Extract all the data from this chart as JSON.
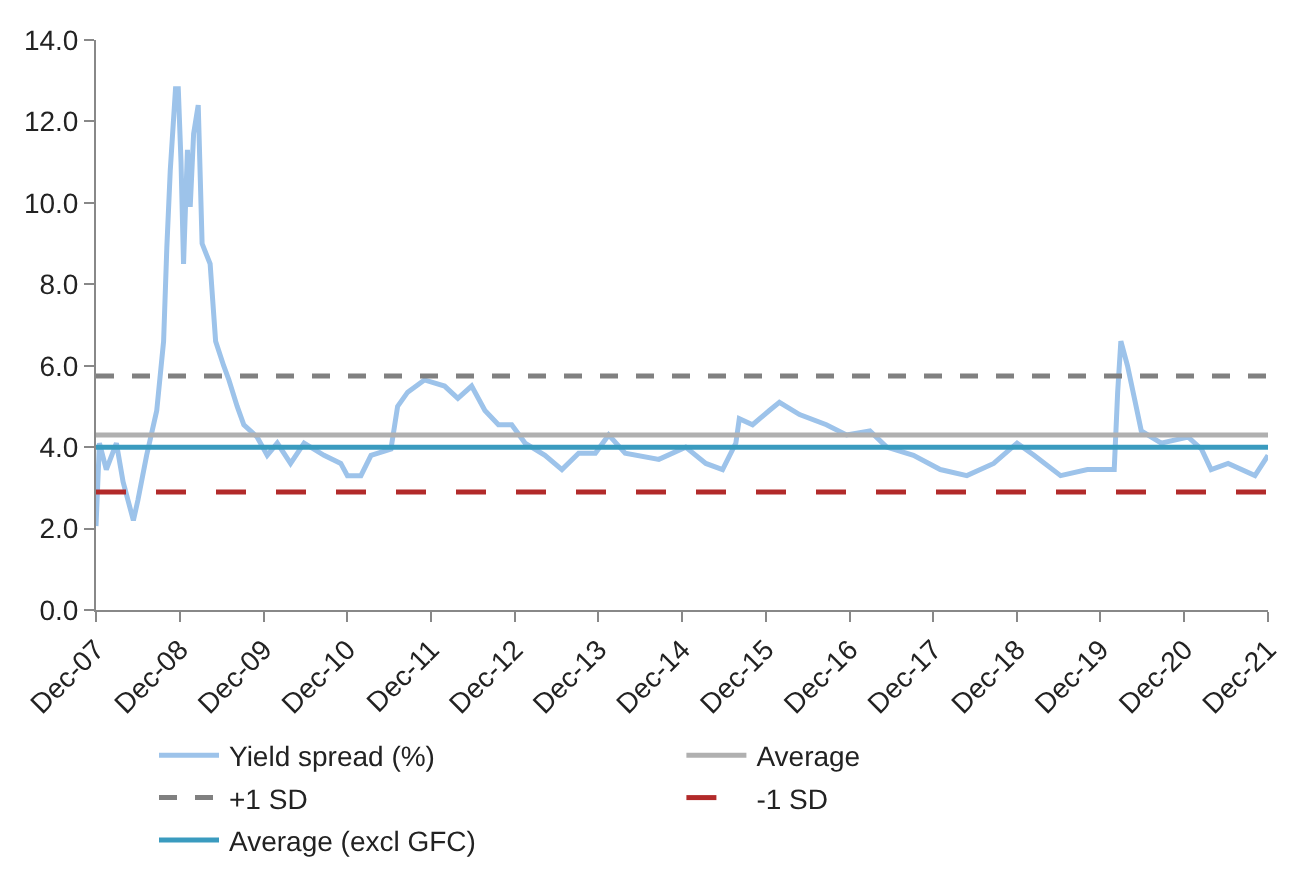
{
  "chart_data": {
    "type": "line",
    "x": [
      "2007-12-01",
      "2007-12-16",
      "2008-01-15",
      "2008-02-28",
      "2008-03-28",
      "2008-05-12",
      "2008-06-01",
      "2008-07-09",
      "2008-08-22",
      "2008-09-21",
      "2008-10-05",
      "2008-10-20",
      "2008-11-12",
      "2008-11-24",
      "2008-12-06",
      "2008-12-17",
      "2009-01-03",
      "2009-01-15",
      "2009-01-30",
      "2009-02-19",
      "2009-03-08",
      "2009-04-12",
      "2009-05-06",
      "2009-06-10",
      "2009-07-03",
      "2009-08-08",
      "2009-09-06",
      "2009-11-03",
      "2009-12-17",
      "2010-01-30",
      "2010-03-29",
      "2010-05-27",
      "2010-08-22",
      "2010-11-03",
      "2010-12-02",
      "2011-01-30",
      "2011-03-15",
      "2011-06-10",
      "2011-07-09",
      "2011-08-22",
      "2011-11-03",
      "2012-01-30",
      "2012-03-28",
      "2012-05-27",
      "2012-07-24",
      "2012-09-21",
      "2012-11-18",
      "2013-01-15",
      "2013-04-12",
      "2013-06-25",
      "2013-09-06",
      "2013-11-18",
      "2014-01-15",
      "2014-03-28",
      "2014-08-22",
      "2014-12-17",
      "2015-03-15",
      "2015-05-27",
      "2015-07-24",
      "2015-08-08",
      "2015-10-05",
      "2015-12-17",
      "2016-01-30",
      "2016-04-27",
      "2016-08-22",
      "2016-11-18",
      "2017-02-28",
      "2017-05-12",
      "2017-09-06",
      "2018-01-01",
      "2018-04-27",
      "2018-08-22",
      "2018-12-02",
      "2019-02-14",
      "2019-06-10",
      "2019-10-05",
      "2020-01-30",
      "2020-02-14",
      "2020-02-28",
      "2020-03-28",
      "2020-04-27",
      "2020-05-27",
      "2020-08-22",
      "2020-12-17",
      "2021-02-14",
      "2021-03-28",
      "2021-06-10",
      "2021-10-05",
      "2021-12-01"
    ],
    "series": [
      {
        "name": "Yield spread (%)",
        "color": "#9dc3ea",
        "values": [
          2.06,
          4.1,
          3.45,
          4.1,
          3.15,
          2.2,
          2.7,
          3.8,
          4.9,
          6.6,
          8.9,
          10.8,
          12.8,
          12.8,
          11.0,
          8.5,
          11.3,
          9.9,
          11.7,
          12.4,
          9.0,
          8.5,
          6.6,
          6.0,
          5.65,
          5.0,
          4.55,
          4.25,
          3.8,
          4.1,
          3.6,
          4.1,
          3.8,
          3.6,
          3.3,
          3.3,
          3.8,
          3.95,
          5.0,
          5.35,
          5.65,
          5.5,
          5.2,
          5.5,
          4.9,
          4.55,
          4.55,
          4.1,
          3.8,
          3.45,
          3.85,
          3.85,
          4.3,
          3.85,
          3.7,
          4.0,
          3.6,
          3.45,
          4.1,
          4.7,
          4.55,
          4.9,
          5.1,
          4.8,
          4.55,
          4.3,
          4.4,
          4.0,
          3.8,
          3.45,
          3.3,
          3.6,
          4.1,
          3.8,
          3.3,
          3.45,
          3.45,
          5.35,
          6.6,
          6.0,
          5.2,
          4.4,
          4.1,
          4.25,
          3.95,
          3.45,
          3.6,
          3.3,
          3.8
        ]
      }
    ],
    "ref_lines": [
      {
        "axis": "y",
        "value": 4.3,
        "label": "Average",
        "color": "#b0b0b0",
        "line_style": "solid"
      },
      {
        "axis": "y",
        "value": 5.75,
        "label": "+1 SD",
        "color": "#808080",
        "line_style": "dashed"
      },
      {
        "axis": "y",
        "value": 2.9,
        "label": "-1 SD",
        "color": "#b22a2a",
        "line_style": "longdash"
      },
      {
        "axis": "y",
        "value": 4.0,
        "label": "Average (excl GFC)",
        "color": "#3a9bbf",
        "line_style": "solid"
      }
    ],
    "xlim": [
      "2007-12-01",
      "2021-12-01"
    ],
    "xticks": [
      {
        "value": "2007-12-01",
        "label": "Dec-07"
      },
      {
        "value": "2008-12-01",
        "label": "Dec-08"
      },
      {
        "value": "2009-12-01",
        "label": "Dec-09"
      },
      {
        "value": "2010-12-01",
        "label": "Dec-10"
      },
      {
        "value": "2011-12-01",
        "label": "Dec-11"
      },
      {
        "value": "2012-12-01",
        "label": "Dec-12"
      },
      {
        "value": "2013-12-01",
        "label": "Dec-13"
      },
      {
        "value": "2014-12-01",
        "label": "Dec-14"
      },
      {
        "value": "2015-12-01",
        "label": "Dec-15"
      },
      {
        "value": "2016-12-01",
        "label": "Dec-16"
      },
      {
        "value": "2017-12-01",
        "label": "Dec-17"
      },
      {
        "value": "2018-12-01",
        "label": "Dec-18"
      },
      {
        "value": "2019-12-01",
        "label": "Dec-19"
      },
      {
        "value": "2020-12-01",
        "label": "Dec-20"
      },
      {
        "value": "2021-12-01",
        "label": "Dec-21"
      }
    ],
    "ylim": [
      0,
      14
    ],
    "yticks": [
      {
        "value": 0,
        "label": "0.0"
      },
      {
        "value": 2,
        "label": "2.0"
      },
      {
        "value": 4,
        "label": "4.0"
      },
      {
        "value": 6,
        "label": "6.0"
      },
      {
        "value": 8,
        "label": "8.0"
      },
      {
        "value": 10,
        "label": "10.0"
      },
      {
        "value": 12,
        "label": "12.0"
      },
      {
        "value": 14,
        "label": "14.0"
      }
    ],
    "grid": false,
    "legend": "bottom",
    "marker": "none",
    "line_style": "solid"
  }
}
